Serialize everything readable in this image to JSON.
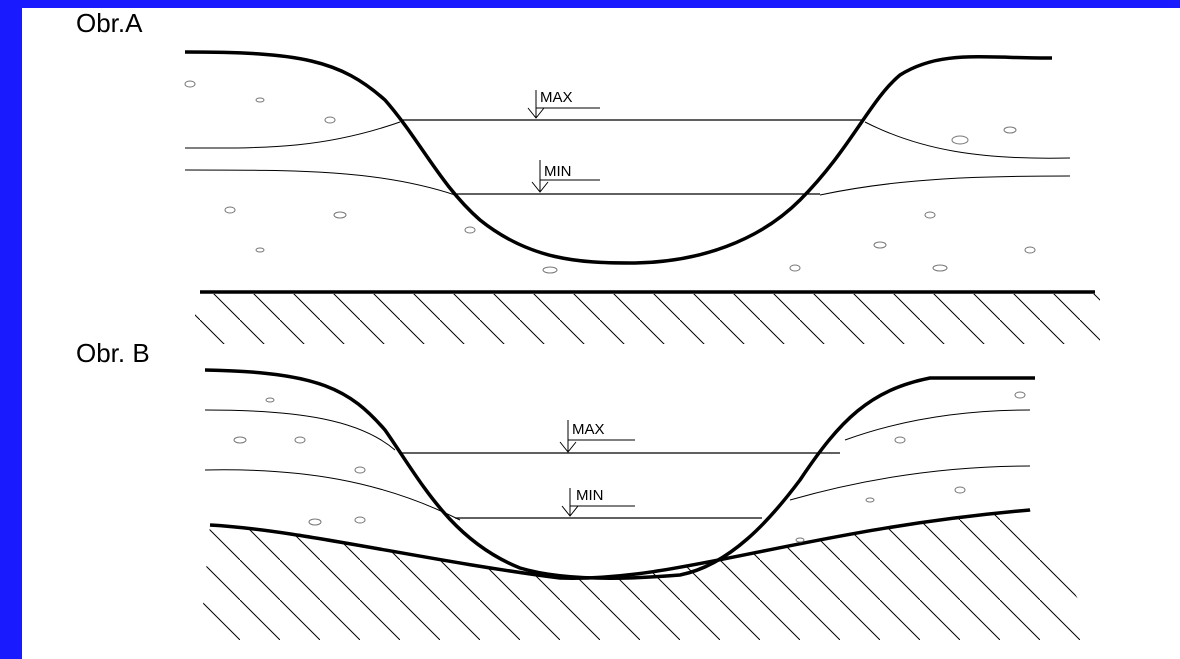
{
  "figures": [
    {
      "label": "Obr.A",
      "max_label": "MAX",
      "min_label": "MIN"
    },
    {
      "label": "Obr. B",
      "max_label": "MAX",
      "min_label": "MIN"
    }
  ]
}
